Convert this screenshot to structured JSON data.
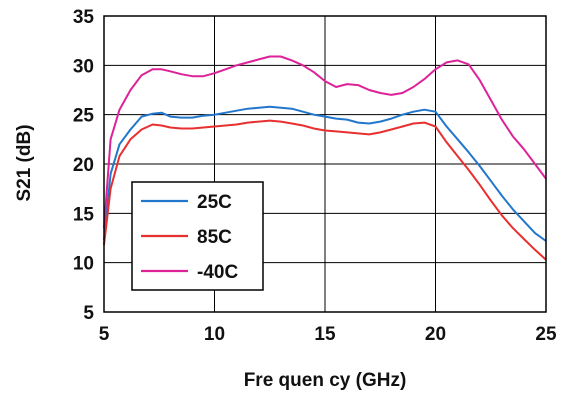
{
  "chart_data": {
    "type": "line",
    "title": "",
    "xlabel": "Fre quen cy (GHz)",
    "ylabel": "S21 (dB)",
    "xlim": [
      5,
      25
    ],
    "ylim": [
      5,
      35
    ],
    "xticks": [
      5,
      10,
      15,
      20,
      25
    ],
    "yticks": [
      5,
      10,
      15,
      20,
      25,
      30,
      35
    ],
    "xtick_labels": [
      "5",
      "10",
      "15",
      "20",
      "25"
    ],
    "ytick_labels": [
      "5",
      "10",
      "15",
      "20",
      "25",
      "30",
      "35"
    ],
    "grid": true,
    "legend_position": "bottom-left",
    "series": [
      {
        "name": "25C",
        "color": "#2277cc",
        "x": [
          5,
          5.3,
          5.7,
          6.2,
          6.7,
          7.2,
          7.6,
          8,
          8.5,
          9,
          9.5,
          10,
          10.5,
          11,
          11.5,
          12,
          12.5,
          13,
          13.5,
          14,
          14.5,
          15,
          15.5,
          16,
          16.5,
          17,
          17.5,
          18,
          18.5,
          19,
          19.5,
          20,
          20.5,
          21,
          21.5,
          22,
          22.5,
          23,
          23.5,
          24,
          24.5,
          25
        ],
        "y": [
          12.3,
          19,
          22,
          23.5,
          24.8,
          25.1,
          25.2,
          24.8,
          24.7,
          24.7,
          24.9,
          25,
          25.2,
          25.4,
          25.6,
          25.7,
          25.8,
          25.7,
          25.6,
          25.3,
          25,
          24.8,
          24.6,
          24.5,
          24.2,
          24.1,
          24.3,
          24.6,
          25,
          25.3,
          25.5,
          25.3,
          23.8,
          22.5,
          21.2,
          19.8,
          18.3,
          16.8,
          15.4,
          14.2,
          13,
          12.2
        ]
      },
      {
        "name": "85C",
        "color": "#e83030",
        "x": [
          5,
          5.3,
          5.7,
          6.2,
          6.7,
          7.2,
          7.6,
          8,
          8.5,
          9,
          9.5,
          10,
          10.5,
          11,
          11.5,
          12,
          12.5,
          13,
          13.5,
          14,
          14.5,
          15,
          15.5,
          16,
          16.5,
          17,
          17.5,
          18,
          18.5,
          19,
          19.5,
          20,
          20.5,
          21,
          21.5,
          22,
          22.5,
          23,
          23.5,
          24,
          24.5,
          25
        ],
        "y": [
          11.8,
          17.5,
          20.8,
          22.5,
          23.5,
          24,
          23.9,
          23.7,
          23.6,
          23.6,
          23.7,
          23.8,
          23.9,
          24,
          24.2,
          24.3,
          24.4,
          24.3,
          24.1,
          23.9,
          23.6,
          23.4,
          23.3,
          23.2,
          23.1,
          23,
          23.2,
          23.5,
          23.8,
          24.1,
          24.2,
          23.8,
          22.2,
          20.8,
          19.4,
          17.9,
          16.3,
          14.8,
          13.5,
          12.4,
          11.3,
          10.3
        ]
      },
      {
        "name": "-40C",
        "color": "#dd2299",
        "x": [
          5,
          5.3,
          5.7,
          6.2,
          6.7,
          7.2,
          7.6,
          8,
          8.5,
          9,
          9.5,
          10,
          10.5,
          11,
          11.5,
          12,
          12.5,
          13,
          13.5,
          14,
          14.5,
          15,
          15.5,
          16,
          16.5,
          17,
          17.5,
          18,
          18.5,
          19,
          19.5,
          20,
          20.5,
          21,
          21.5,
          22,
          22.5,
          23,
          23.5,
          24,
          24.5,
          25
        ],
        "y": [
          13.5,
          22.5,
          25.5,
          27.5,
          29,
          29.6,
          29.6,
          29.4,
          29.1,
          28.9,
          28.9,
          29.2,
          29.6,
          30,
          30.3,
          30.6,
          30.9,
          30.9,
          30.5,
          30,
          29.3,
          28.4,
          27.8,
          28.1,
          28,
          27.5,
          27.2,
          27,
          27.2,
          27.8,
          28.6,
          29.6,
          30.3,
          30.5,
          30.1,
          28.5,
          26.5,
          24.5,
          22.8,
          21.5,
          20,
          18.5
        ]
      }
    ]
  }
}
